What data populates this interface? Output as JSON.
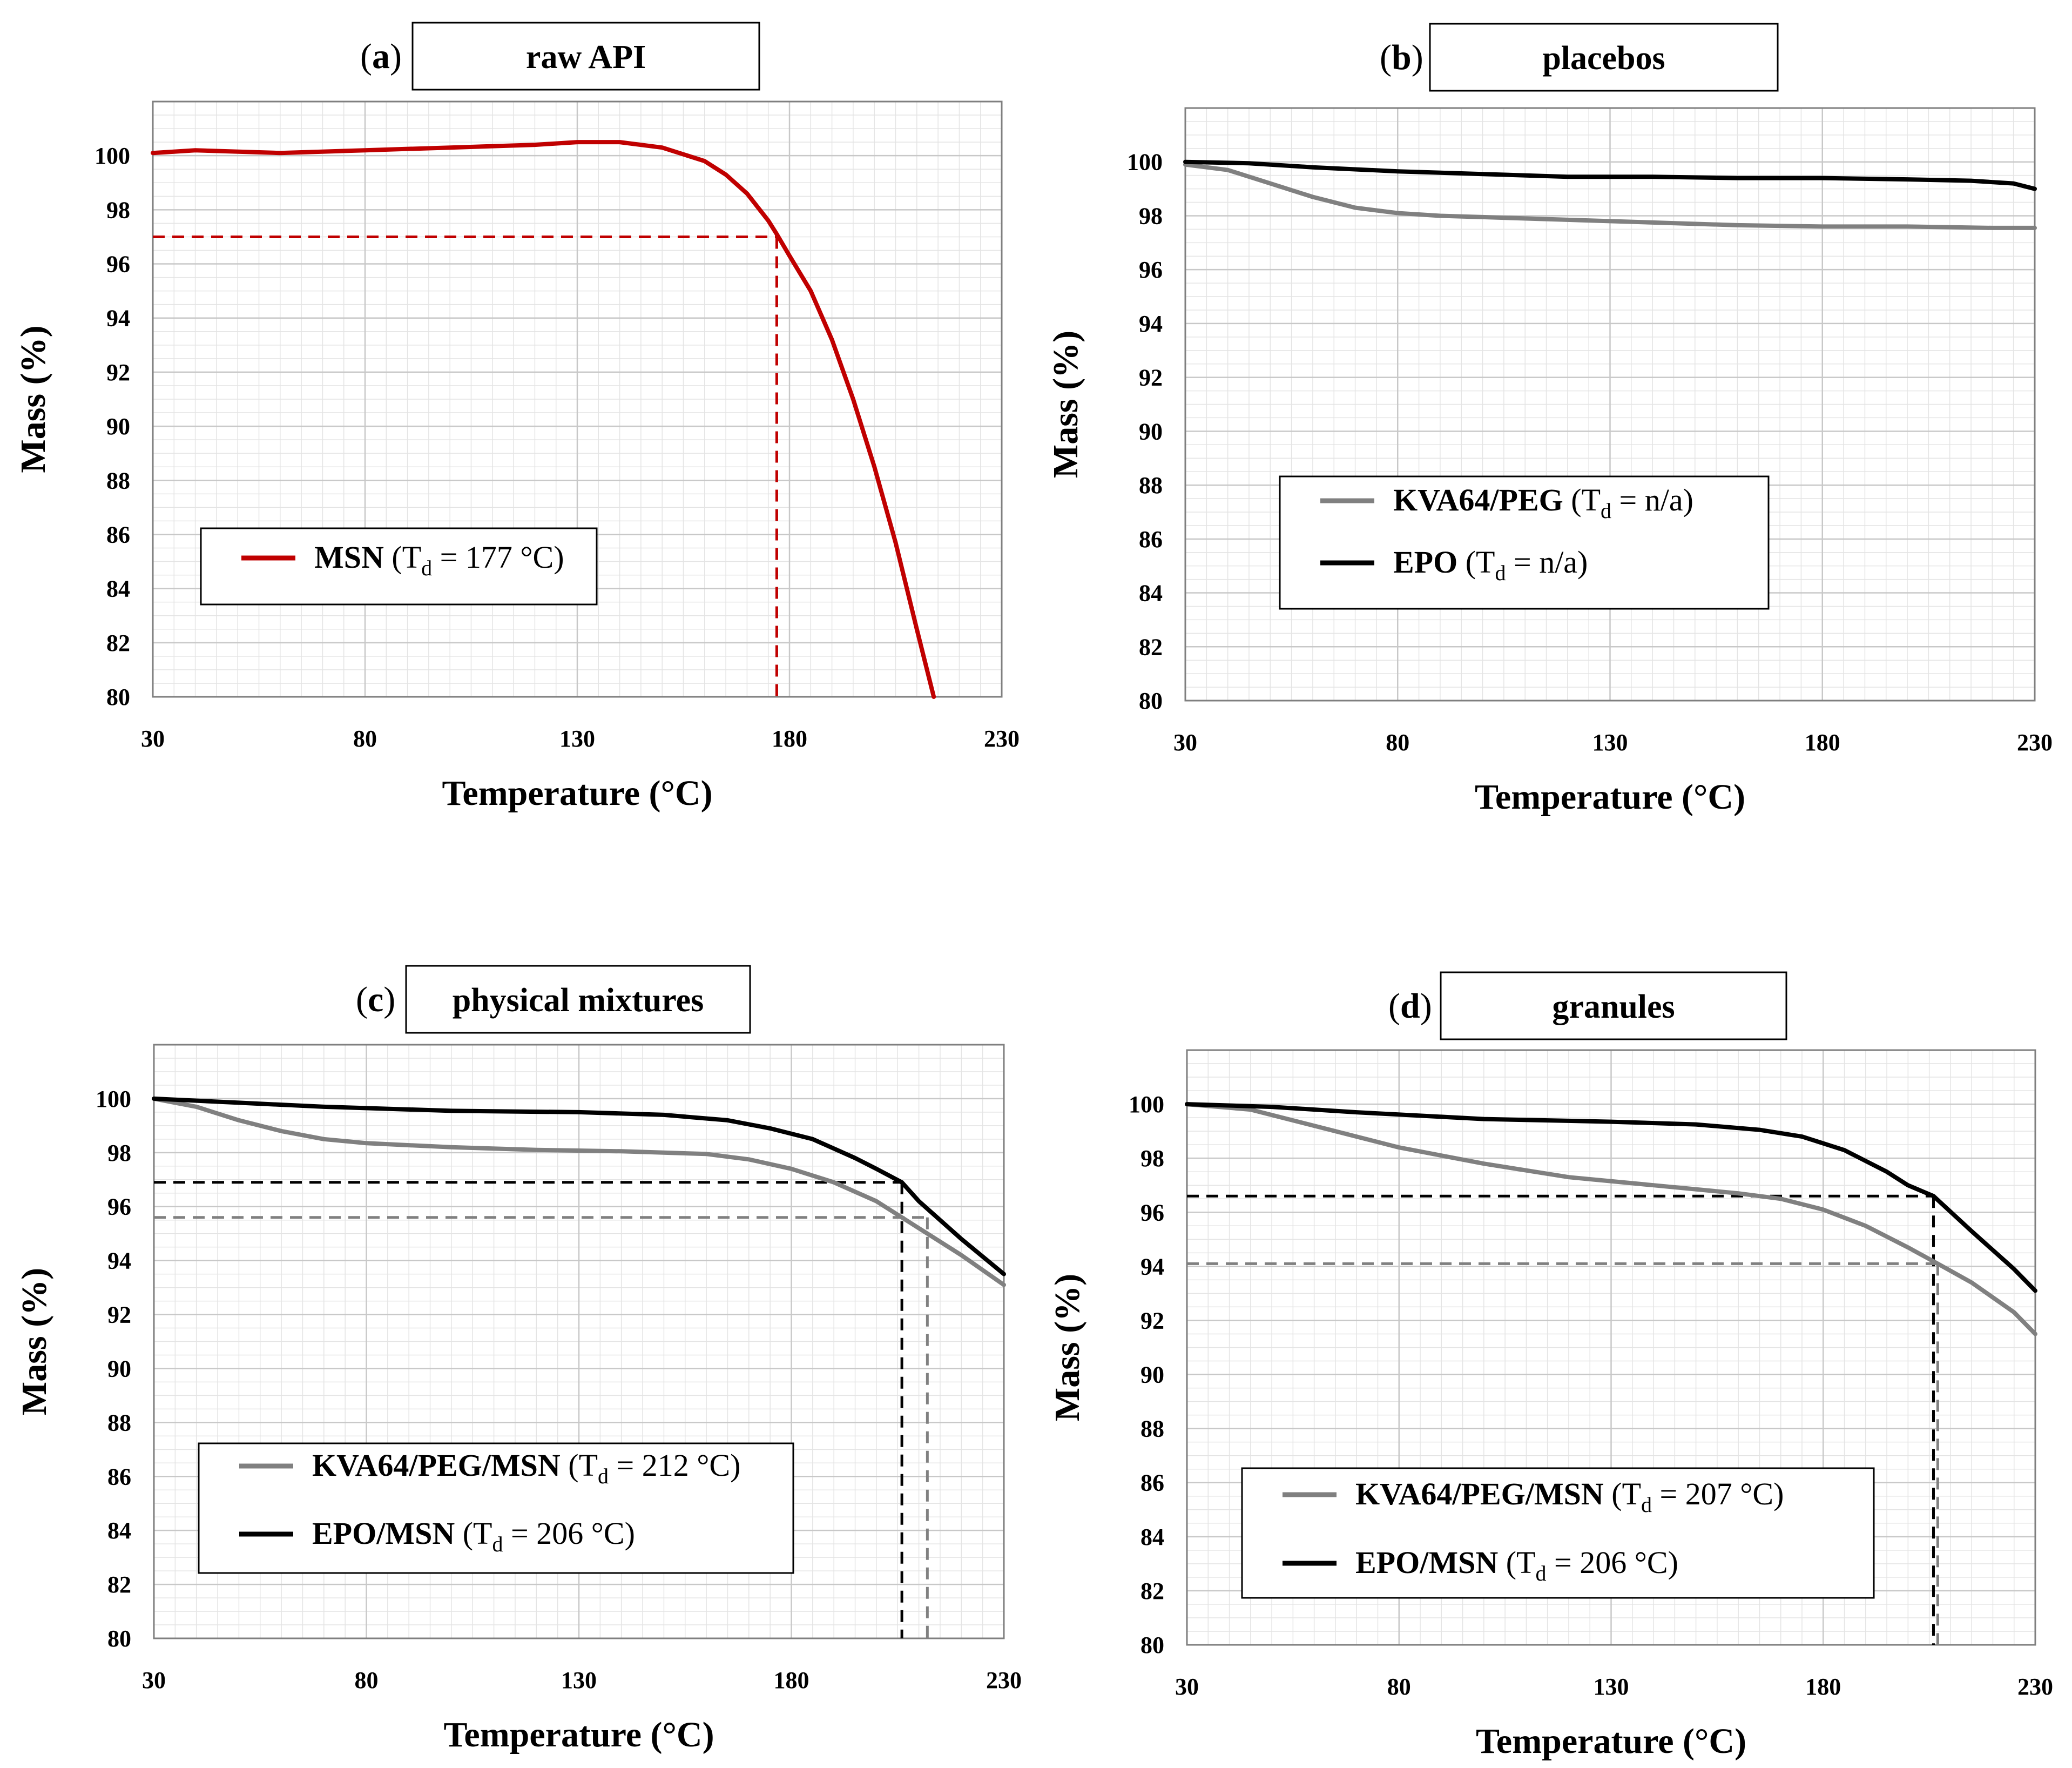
{
  "chart_data": [
    {
      "id": "a",
      "panel_letter": "a",
      "title": "raw API",
      "type": "line",
      "xlabel": "Temperature (°C)",
      "ylabel": "Mass (%)",
      "xlim": [
        30,
        230
      ],
      "ylim": [
        80,
        102
      ],
      "xticks": [
        30,
        80,
        130,
        180,
        230
      ],
      "yticks": [
        80,
        82,
        84,
        86,
        88,
        90,
        92,
        94,
        96,
        98,
        100
      ],
      "grid": true,
      "legend_position": "center-left",
      "series": [
        {
          "legend_name": "MSN",
          "legend_td": "= 177 °C)",
          "color": "#c00000",
          "x": [
            30,
            40,
            60,
            80,
            100,
            120,
            130,
            140,
            150,
            160,
            165,
            170,
            175,
            177,
            180,
            185,
            190,
            195,
            200,
            205,
            210,
            214
          ],
          "y": [
            100.1,
            100.2,
            100.1,
            100.2,
            100.3,
            100.4,
            100.5,
            100.5,
            100.3,
            99.8,
            99.3,
            98.6,
            97.6,
            97.1,
            96.3,
            95.0,
            93.2,
            91.0,
            88.5,
            85.7,
            82.5,
            80.0
          ]
        }
      ],
      "guides": [
        {
          "color": "#c00000",
          "x": 177,
          "y": 97.0
        }
      ]
    },
    {
      "id": "b",
      "panel_letter": "b",
      "title": "placebos",
      "type": "line",
      "xlabel": "Temperature (°C)",
      "ylabel": "Mass (%)",
      "xlim": [
        30,
        230
      ],
      "ylim": [
        80,
        102
      ],
      "xticks": [
        30,
        80,
        130,
        180,
        230
      ],
      "yticks": [
        80,
        82,
        84,
        86,
        88,
        90,
        92,
        94,
        96,
        98,
        100
      ],
      "grid": true,
      "legend_position": "center-right",
      "series": [
        {
          "legend_name": "KVA64/PEG",
          "legend_td": "= n/a)",
          "color": "#808080",
          "x": [
            30,
            40,
            50,
            60,
            70,
            80,
            90,
            100,
            120,
            140,
            160,
            180,
            200,
            220,
            230
          ],
          "y": [
            99.9,
            99.7,
            99.2,
            98.7,
            98.3,
            98.1,
            98.0,
            97.95,
            97.85,
            97.75,
            97.65,
            97.6,
            97.6,
            97.55,
            97.55
          ]
        },
        {
          "legend_name": "EPO",
          "legend_td": "= n/a)",
          "color": "#000000",
          "x": [
            30,
            45,
            60,
            80,
            100,
            120,
            140,
            160,
            180,
            200,
            215,
            225,
            230
          ],
          "y": [
            100.0,
            99.95,
            99.8,
            99.65,
            99.55,
            99.45,
            99.45,
            99.4,
            99.4,
            99.35,
            99.3,
            99.2,
            99.0
          ]
        }
      ],
      "guides": []
    },
    {
      "id": "c",
      "panel_letter": "c",
      "title": "physical mixtures",
      "type": "line",
      "xlabel": "Temperature (°C)",
      "ylabel": "Mass (%)",
      "xlim": [
        30,
        230
      ],
      "ylim": [
        80,
        102
      ],
      "xticks": [
        30,
        80,
        130,
        180,
        230
      ],
      "yticks": [
        80,
        82,
        84,
        86,
        88,
        90,
        92,
        94,
        96,
        98,
        100
      ],
      "grid": true,
      "legend_position": "bottom-left",
      "series": [
        {
          "legend_name": "KVA64/PEG/MSN",
          "legend_td": "= 212 °C)",
          "color": "#808080",
          "x": [
            30,
            40,
            50,
            60,
            70,
            80,
            100,
            120,
            140,
            160,
            170,
            180,
            190,
            200,
            210,
            220,
            230
          ],
          "y": [
            100.0,
            99.7,
            99.2,
            98.8,
            98.5,
            98.35,
            98.2,
            98.1,
            98.05,
            97.95,
            97.75,
            97.4,
            96.9,
            96.2,
            95.2,
            94.2,
            93.1
          ]
        },
        {
          "legend_name": "EPO/MSN",
          "legend_td": "= 206 °C)",
          "color": "#000000",
          "x": [
            30,
            50,
            70,
            100,
            130,
            150,
            165,
            175,
            185,
            195,
            200,
            206,
            210,
            220,
            230
          ],
          "y": [
            100.0,
            99.85,
            99.7,
            99.55,
            99.5,
            99.4,
            99.2,
            98.9,
            98.5,
            97.8,
            97.4,
            96.9,
            96.2,
            94.8,
            93.5
          ]
        }
      ],
      "guides": [
        {
          "color": "#000000",
          "x": 206,
          "y": 96.9
        },
        {
          "color": "#808080",
          "x": 212,
          "y": 95.6
        }
      ]
    },
    {
      "id": "d",
      "panel_letter": "d",
      "title": "granules",
      "type": "line",
      "xlabel": "Temperature (°C)",
      "ylabel": "Mass (%)",
      "xlim": [
        30,
        230
      ],
      "ylim": [
        80,
        102
      ],
      "xticks": [
        30,
        80,
        130,
        180,
        230
      ],
      "yticks": [
        80,
        82,
        84,
        86,
        88,
        90,
        92,
        94,
        96,
        98,
        100
      ],
      "grid": true,
      "legend_position": "bottom-left",
      "series": [
        {
          "legend_name": "KVA64/PEG/MSN",
          "legend_td": "= 207 °C)",
          "color": "#808080",
          "x": [
            30,
            45,
            60,
            80,
            100,
            120,
            140,
            160,
            170,
            180,
            190,
            200,
            207,
            215,
            225,
            230
          ],
          "y": [
            100.0,
            99.8,
            99.2,
            98.4,
            97.8,
            97.3,
            97.0,
            96.7,
            96.5,
            96.1,
            95.5,
            94.7,
            94.1,
            93.4,
            92.3,
            91.5
          ]
        },
        {
          "legend_name": "EPO/MSN",
          "legend_td": "= 206 °C)",
          "color": "#000000",
          "x": [
            30,
            50,
            70,
            100,
            130,
            150,
            165,
            175,
            185,
            195,
            200,
            206,
            215,
            225,
            230
          ],
          "y": [
            100.0,
            99.9,
            99.7,
            99.45,
            99.35,
            99.25,
            99.05,
            98.8,
            98.3,
            97.5,
            97.0,
            96.6,
            95.3,
            93.9,
            93.1
          ]
        }
      ],
      "guides": [
        {
          "color": "#000000",
          "x": 206,
          "y": 96.6
        },
        {
          "color": "#808080",
          "x": 207,
          "y": 94.1
        }
      ]
    }
  ],
  "td_symbol": "T",
  "td_subscript": "d"
}
